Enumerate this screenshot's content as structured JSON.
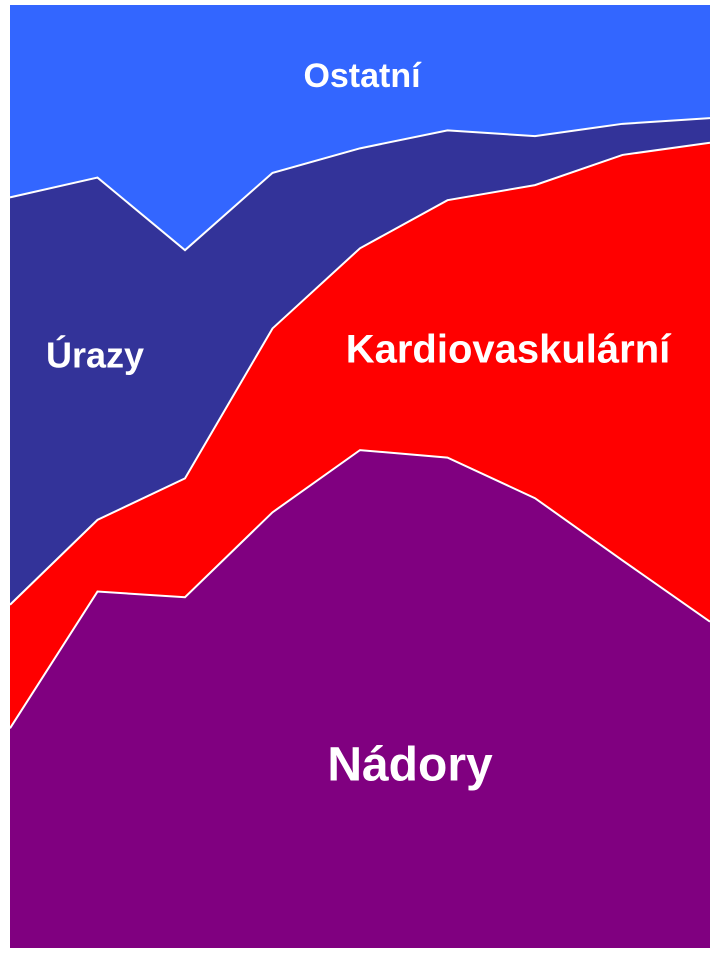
{
  "chart_data": {
    "type": "area",
    "stacked": true,
    "categories": [
      null,
      null,
      null,
      null,
      null,
      null,
      null,
      null,
      null
    ],
    "ylim": [
      0,
      100
    ],
    "series": [
      {
        "name": "Nádory",
        "color": "#800080",
        "values": [
          23.3,
          37.8,
          37.2,
          46.2,
          52.8,
          52.0,
          47.7,
          41.1,
          34.6
        ]
      },
      {
        "name": "Kardiovaskulární",
        "color": "#ff0000",
        "values": [
          13.1,
          7.6,
          12.6,
          19.5,
          21.4,
          27.3,
          33.2,
          43.0,
          50.8
        ]
      },
      {
        "name": "Úrazy",
        "color": "#333399",
        "values": [
          43.2,
          36.3,
          24.2,
          16.5,
          10.6,
          7.4,
          5.2,
          3.3,
          2.6
        ]
      },
      {
        "name": "Ostatní",
        "color": "#3366ff",
        "values": [
          20.4,
          18.3,
          26.0,
          17.8,
          15.2,
          13.3,
          13.9,
          12.6,
          12.0
        ]
      }
    ]
  }
}
